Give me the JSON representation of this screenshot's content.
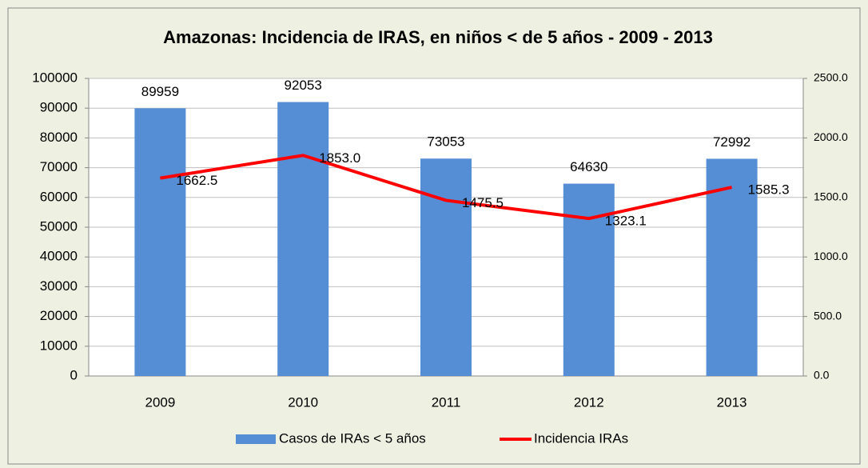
{
  "chart_data": {
    "type": "bar-line",
    "title": "Amazonas:  Incidencia de IRAS, en niños < de 5 años - 2009 - 2013",
    "categories": [
      "2009",
      "2010",
      "2011",
      "2012",
      "2013"
    ],
    "series": [
      {
        "name": "Casos de IRAs < 5 años",
        "color": "#558ed5",
        "type": "bar",
        "values": [
          89959,
          92053,
          73053,
          64630,
          72992
        ]
      },
      {
        "name": "Incidencia IRAs",
        "color": "#ff0000",
        "type": "line",
        "axis": "y2",
        "values": [
          1662.5,
          1853.0,
          1475.5,
          1323.1,
          1585.3
        ],
        "value_labels": [
          "1662.5",
          "1853.0",
          "1475.5",
          "1323.1",
          "1585.3"
        ]
      }
    ],
    "ylim": [
      0,
      100000
    ],
    "yticks": [
      0,
      10000,
      20000,
      30000,
      40000,
      50000,
      60000,
      70000,
      80000,
      90000,
      100000
    ],
    "y2lim": [
      0,
      2500
    ],
    "y2ticks": [
      {
        "value": 0,
        "label": "0.0"
      },
      {
        "value": 500,
        "label": "500.0"
      },
      {
        "value": 1000,
        "label": "1000.0"
      },
      {
        "value": 1500,
        "label": "1500.0"
      },
      {
        "value": 2000,
        "label": "2000.0"
      },
      {
        "value": 2500,
        "label": "2500.0"
      }
    ],
    "grid": true,
    "legend": "bottom"
  }
}
